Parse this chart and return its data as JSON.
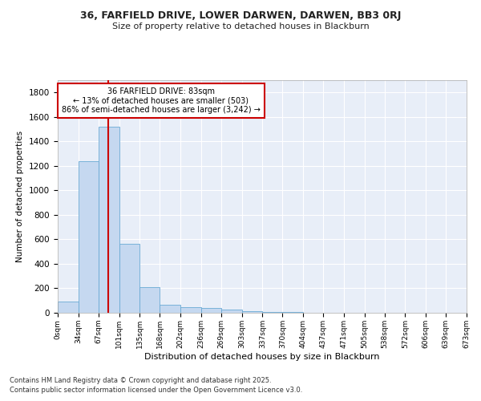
{
  "title": "36, FARFIELD DRIVE, LOWER DARWEN, DARWEN, BB3 0RJ",
  "subtitle": "Size of property relative to detached houses in Blackburn",
  "xlabel": "Distribution of detached houses by size in Blackburn",
  "ylabel": "Number of detached properties",
  "footnote1": "Contains HM Land Registry data © Crown copyright and database right 2025.",
  "footnote2": "Contains public sector information licensed under the Open Government Licence v3.0.",
  "annotation_title": "36 FARFIELD DRIVE: 83sqm",
  "annotation_line1": "← 13% of detached houses are smaller (503)",
  "annotation_line2": "86% of semi-detached houses are larger (3,242) →",
  "property_size": 83,
  "bar_color": "#c5d8f0",
  "bar_edge_color": "#6aaad4",
  "red_line_color": "#cc0000",
  "annotation_box_edge_color": "#cc0000",
  "background_color": "#ffffff",
  "plot_bg_color": "#e8eef8",
  "grid_color": "#ffffff",
  "bins": [
    0,
    34,
    67,
    101,
    135,
    168,
    202,
    236,
    269,
    303,
    337,
    370,
    404,
    437,
    471,
    505,
    538,
    572,
    606,
    639,
    673
  ],
  "bin_labels": [
    "0sqm",
    "34sqm",
    "67sqm",
    "101sqm",
    "135sqm",
    "168sqm",
    "202sqm",
    "236sqm",
    "269sqm",
    "303sqm",
    "337sqm",
    "370sqm",
    "404sqm",
    "437sqm",
    "471sqm",
    "505sqm",
    "538sqm",
    "572sqm",
    "606sqm",
    "639sqm",
    "673sqm"
  ],
  "counts": [
    90,
    1240,
    1520,
    565,
    210,
    68,
    47,
    37,
    28,
    15,
    8,
    5,
    3,
    2,
    1,
    0,
    0,
    0,
    0,
    0
  ],
  "ylim": [
    0,
    1900
  ],
  "yticks": [
    0,
    200,
    400,
    600,
    800,
    1000,
    1200,
    1400,
    1600,
    1800
  ]
}
